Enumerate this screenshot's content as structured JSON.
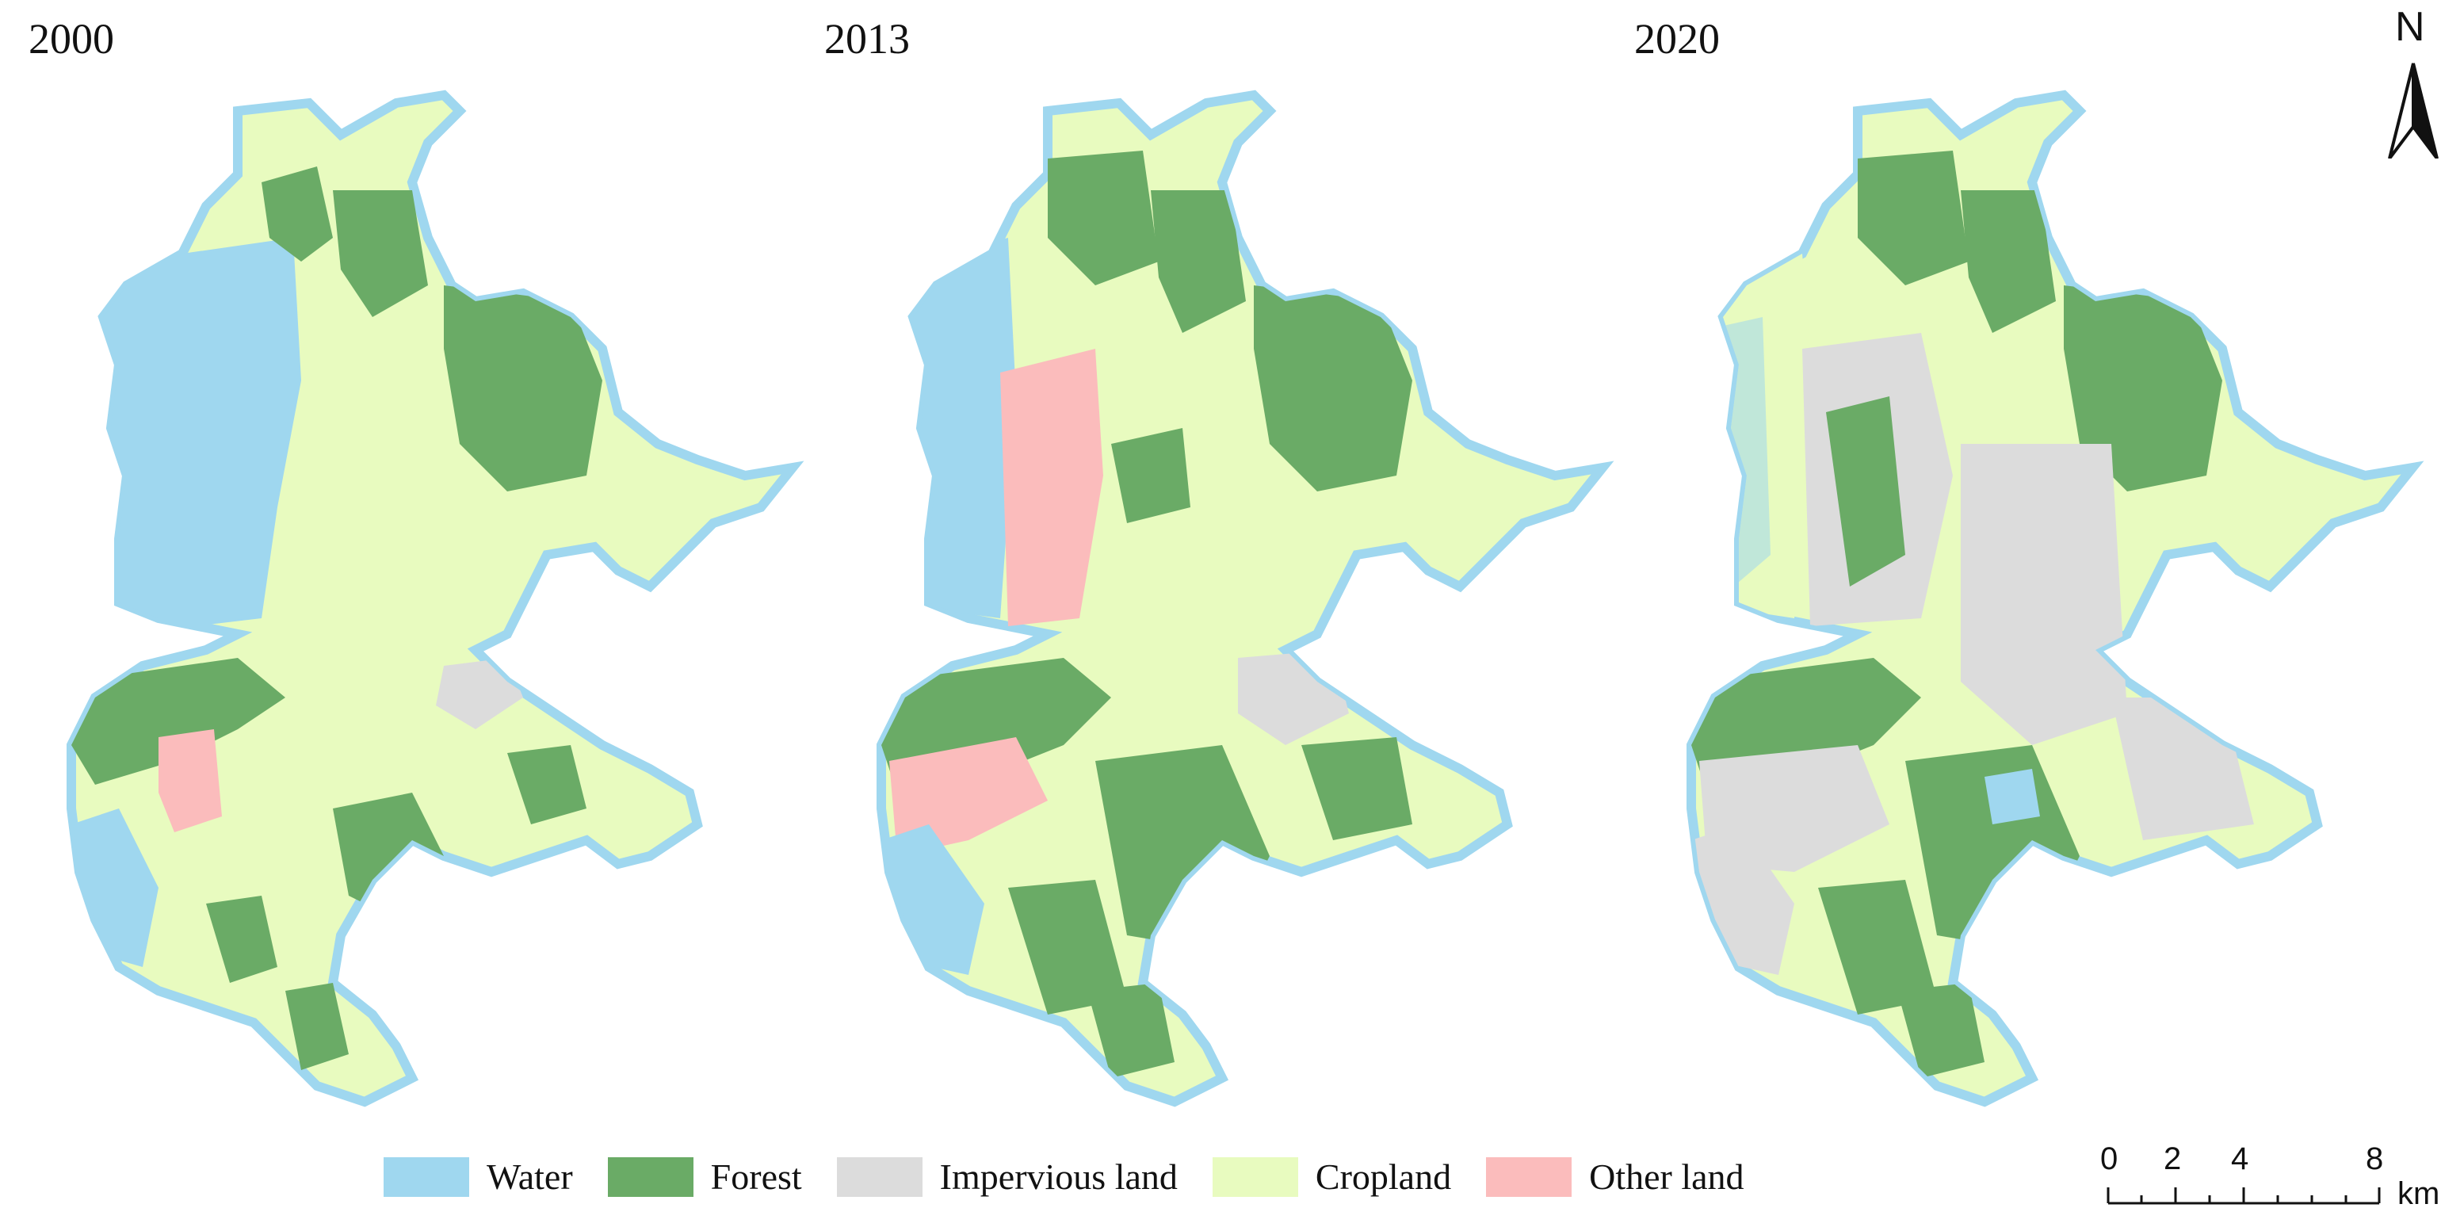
{
  "panels": [
    {
      "title": "2000"
    },
    {
      "title": "2013"
    },
    {
      "title": "2020"
    }
  ],
  "north_arrow": {
    "label": "N"
  },
  "legend": [
    {
      "label": "Water",
      "color": "#9fd7ef"
    },
    {
      "label": "Forest",
      "color": "#6aab66"
    },
    {
      "label": "Impervious land",
      "color": "#dcdcdc"
    },
    {
      "label": "Cropland",
      "color": "#e8fbbf"
    },
    {
      "label": "Other land",
      "color": "#fbbcbc"
    }
  ],
  "scale_bar": {
    "ticks": [
      "0",
      "2",
      "4",
      "8"
    ],
    "unit": "km"
  }
}
